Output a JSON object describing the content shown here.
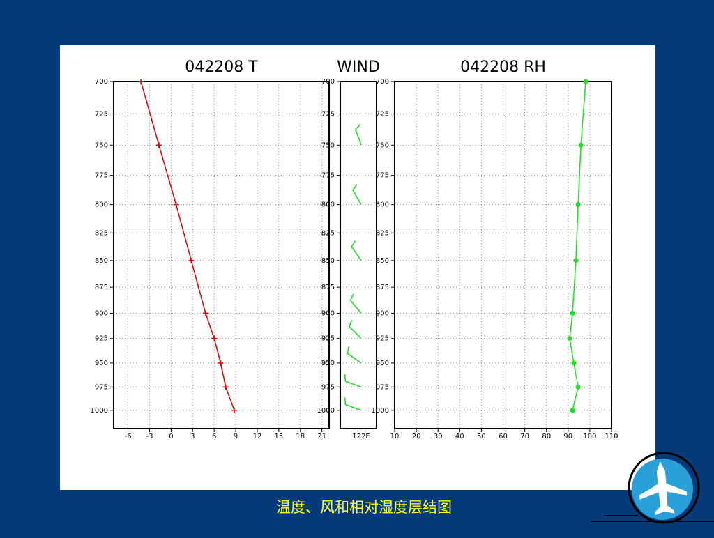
{
  "chart_data": [
    {
      "type": "line",
      "title": "042208 T",
      "color": "#e00000",
      "marker": "plus",
      "levels": [
        700,
        750,
        800,
        850,
        900,
        925,
        950,
        975,
        1000
      ],
      "values": [
        -4.2,
        -1.7,
        0.7,
        2.8,
        4.8,
        6.0,
        6.9,
        7.6,
        8.8
      ],
      "xlim": [
        -8,
        22
      ],
      "xticks": [
        -6,
        -3,
        0,
        3,
        6,
        9,
        12,
        15,
        18,
        21
      ],
      "ylim": [
        1020,
        700
      ],
      "ylog": true,
      "yticks": [
        700,
        725,
        750,
        775,
        800,
        825,
        850,
        875,
        900,
        925,
        950,
        975,
        1000
      ],
      "grid": true
    },
    {
      "type": "wind_barb",
      "title": "WIND",
      "color": "#22dd22",
      "categories": [
        "122E"
      ],
      "levels": [
        750,
        800,
        850,
        900,
        925,
        950,
        975,
        1000
      ],
      "direction": [
        340,
        330,
        325,
        320,
        315,
        305,
        290,
        290
      ],
      "speed": [
        4,
        4,
        4,
        4,
        4,
        4,
        4,
        4
      ],
      "ylim": [
        1020,
        700
      ],
      "ylog": true,
      "yticks": [
        700,
        725,
        750,
        775,
        800,
        825,
        850,
        875,
        900,
        925,
        950,
        975,
        1000
      ],
      "grid": true
    },
    {
      "type": "line",
      "title": "042208 RH",
      "color": "#22dd22",
      "marker": "dot",
      "levels": [
        700,
        750,
        800,
        850,
        900,
        925,
        950,
        975,
        1000
      ],
      "values": [
        98.1,
        95.9,
        94.6,
        93.6,
        92.0,
        90.7,
        92.6,
        94.6,
        92.0
      ],
      "xlim": [
        10,
        110
      ],
      "xticks": [
        10,
        20,
        30,
        40,
        50,
        60,
        70,
        80,
        90,
        100,
        110
      ],
      "ylim": [
        1020,
        700
      ],
      "ylog": true,
      "yticks": [
        700,
        725,
        750,
        775,
        800,
        825,
        850,
        875,
        900,
        925,
        950,
        975,
        1000
      ],
      "grid": true
    }
  ],
  "caption": "温度、风和相对湿度层结图"
}
